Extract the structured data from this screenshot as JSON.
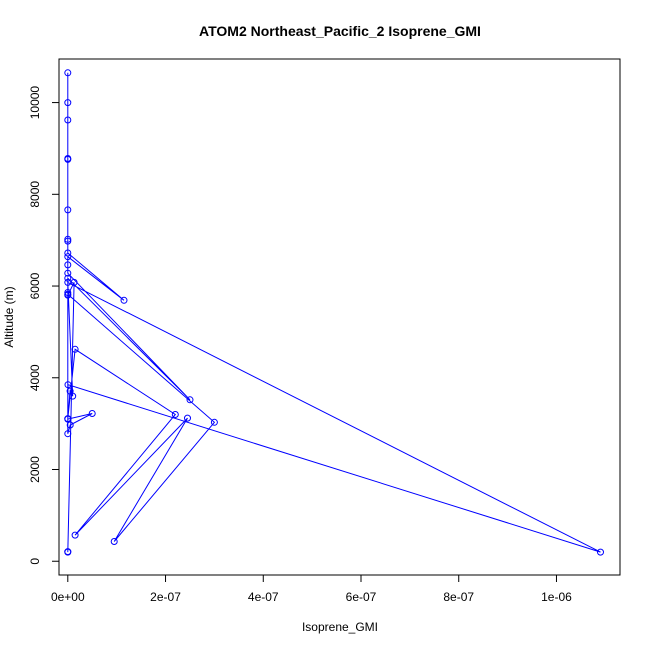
{
  "chart_data": {
    "type": "line",
    "title": "ATOM2 Northeast_Pacific_2 Isoprene_GMI",
    "xlabel": "Isoprene_GMI",
    "ylabel": "Altitude (m)",
    "xlim": [
      -1.8e-08,
      1.13e-06
    ],
    "ylim": [
      -300,
      10950
    ],
    "x_ticks": [
      0,
      2e-07,
      4e-07,
      6e-07,
      8e-07,
      1e-06
    ],
    "x_tick_labels": [
      "0e+00",
      "2e-07",
      "4e-07",
      "6e-07",
      "8e-07",
      "1e-06"
    ],
    "y_ticks": [
      0,
      2000,
      4000,
      6000,
      8000,
      10000
    ],
    "y_tick_labels": [
      "0",
      "2000",
      "4000",
      "6000",
      "8000",
      "10000"
    ],
    "marker": "open-circle",
    "color": "#0000ff",
    "series": [
      {
        "x": [
          0,
          0,
          0,
          0,
          0,
          0,
          0,
          0,
          0,
          1.15e-07,
          0,
          0,
          0,
          2.5e-07,
          0,
          0,
          0,
          3e-07,
          9.5e-08,
          2.45e-07,
          1.5e-08,
          2.2e-07,
          1.5e-08,
          0,
          4.7e-09,
          1e-08,
          0,
          1.09e-06,
          5e-10,
          0,
          5e-08,
          5e-09,
          0,
          0,
          1.3e-08,
          0,
          0
        ],
        "y": [
          10650,
          9620,
          10000,
          8760,
          8780,
          7660,
          7020,
          6980,
          6720,
          5690,
          6640,
          6460,
          6280,
          3520,
          6170,
          5860,
          5820,
          3030,
          430,
          3120,
          570,
          3200,
          4620,
          3110,
          3710,
          3600,
          6080,
          200,
          3850,
          3100,
          3220,
          2970,
          2780,
          5800,
          6080,
          200,
          210
        ]
      }
    ]
  }
}
